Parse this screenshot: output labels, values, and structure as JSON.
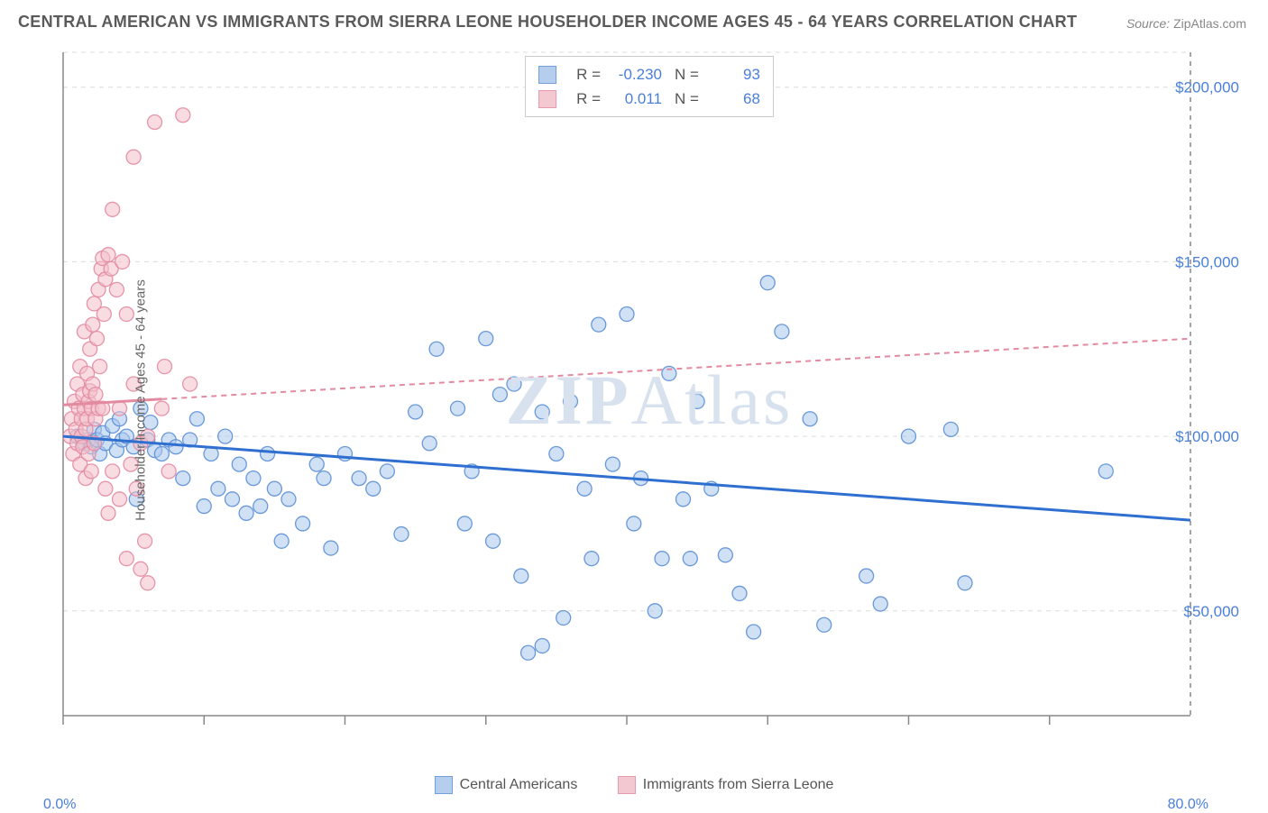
{
  "title": "CENTRAL AMERICAN VS IMMIGRANTS FROM SIERRA LEONE HOUSEHOLDER INCOME AGES 45 - 64 YEARS CORRELATION CHART",
  "source_label": "Source:",
  "source_value": "ZipAtlas.com",
  "ylabel": "Householder Income Ages 45 - 64 years",
  "watermark": "ZIPAtlas",
  "chart": {
    "type": "scatter",
    "xlim": [
      0,
      80
    ],
    "ylim": [
      20000,
      210000
    ],
    "xtick_positions": [
      0,
      10,
      20,
      30,
      40,
      50,
      60,
      70
    ],
    "ytick_positions": [
      50000,
      100000,
      150000,
      200000
    ],
    "ytick_labels": [
      "$50,000",
      "$100,000",
      "$150,000",
      "$200,000"
    ],
    "xmin_label": "0.0%",
    "xmax_label": "80.0%",
    "background_color": "#ffffff",
    "grid_color": "#dcdcdc",
    "axis_color": "#888888",
    "marker_radius": 8,
    "marker_opacity": 0.55,
    "marker_stroke_opacity": 0.9,
    "series": [
      {
        "name": "Central Americans",
        "color_fill": "#a9c6ec",
        "color_stroke": "#5b8fd6",
        "r": -0.23,
        "n": 93,
        "trend": {
          "y_at_xmin": 100000,
          "y_at_xmax": 76000,
          "stroke": "#2f6fd0",
          "width": 3,
          "dash": "none"
        },
        "points": [
          [
            1.0,
            100000
          ],
          [
            1.5,
            98000
          ],
          [
            1.8,
            99000
          ],
          [
            2.0,
            97000
          ],
          [
            2.2,
            102000
          ],
          [
            2.4,
            99000
          ],
          [
            2.6,
            95000
          ],
          [
            2.8,
            101000
          ],
          [
            3.0,
            98000
          ],
          [
            3.5,
            103000
          ],
          [
            3.8,
            96000
          ],
          [
            4.0,
            105000
          ],
          [
            4.2,
            99000
          ],
          [
            4.5,
            100000
          ],
          [
            5.0,
            97000
          ],
          [
            5.2,
            82000
          ],
          [
            5.5,
            108000
          ],
          [
            6.0,
            99000
          ],
          [
            6.2,
            104000
          ],
          [
            6.5,
            96000
          ],
          [
            7.0,
            95000
          ],
          [
            7.5,
            99000
          ],
          [
            8.0,
            97000
          ],
          [
            8.5,
            88000
          ],
          [
            9.0,
            99000
          ],
          [
            9.5,
            105000
          ],
          [
            10.0,
            80000
          ],
          [
            10.5,
            95000
          ],
          [
            11.0,
            85000
          ],
          [
            11.5,
            100000
          ],
          [
            12.0,
            82000
          ],
          [
            12.5,
            92000
          ],
          [
            13.0,
            78000
          ],
          [
            13.5,
            88000
          ],
          [
            14.0,
            80000
          ],
          [
            14.5,
            95000
          ],
          [
            15.0,
            85000
          ],
          [
            15.5,
            70000
          ],
          [
            16.0,
            82000
          ],
          [
            17.0,
            75000
          ],
          [
            18.0,
            92000
          ],
          [
            18.5,
            88000
          ],
          [
            19.0,
            68000
          ],
          [
            20.0,
            95000
          ],
          [
            21.0,
            88000
          ],
          [
            22.0,
            85000
          ],
          [
            23.0,
            90000
          ],
          [
            24.0,
            72000
          ],
          [
            25.0,
            107000
          ],
          [
            26.0,
            98000
          ],
          [
            26.5,
            125000
          ],
          [
            28.0,
            108000
          ],
          [
            28.5,
            75000
          ],
          [
            29.0,
            90000
          ],
          [
            30.0,
            128000
          ],
          [
            30.5,
            70000
          ],
          [
            31.0,
            112000
          ],
          [
            32.0,
            115000
          ],
          [
            32.5,
            60000
          ],
          [
            33.0,
            38000
          ],
          [
            34.0,
            40000
          ],
          [
            34.0,
            107000
          ],
          [
            35.0,
            95000
          ],
          [
            35.5,
            48000
          ],
          [
            36.0,
            110000
          ],
          [
            37.0,
            85000
          ],
          [
            37.5,
            65000
          ],
          [
            38.0,
            132000
          ],
          [
            39.0,
            92000
          ],
          [
            40.0,
            135000
          ],
          [
            40.5,
            75000
          ],
          [
            41.0,
            88000
          ],
          [
            42.0,
            50000
          ],
          [
            42.5,
            65000
          ],
          [
            43.0,
            118000
          ],
          [
            44.0,
            82000
          ],
          [
            44.5,
            65000
          ],
          [
            45.0,
            110000
          ],
          [
            46.0,
            85000
          ],
          [
            47.0,
            66000
          ],
          [
            48.0,
            55000
          ],
          [
            49.0,
            44000
          ],
          [
            50.0,
            144000
          ],
          [
            51.0,
            130000
          ],
          [
            53.0,
            105000
          ],
          [
            54.0,
            46000
          ],
          [
            57.0,
            60000
          ],
          [
            58.0,
            52000
          ],
          [
            60.0,
            100000
          ],
          [
            63.0,
            102000
          ],
          [
            64.0,
            58000
          ],
          [
            74.0,
            90000
          ]
        ]
      },
      {
        "name": "Immigrants from Sierra Leone",
        "color_fill": "#f2bfca",
        "color_stroke": "#e38aa0",
        "r": 0.011,
        "n": 68,
        "trend": {
          "y_at_xmin": 109000,
          "y_at_xmax": 128000,
          "stroke": "#e38aa0",
          "width": 2,
          "dash": "6 5",
          "solid_until": 7
        },
        "points": [
          [
            0.5,
            100000
          ],
          [
            0.6,
            105000
          ],
          [
            0.7,
            95000
          ],
          [
            0.8,
            110000
          ],
          [
            0.9,
            102000
          ],
          [
            1.0,
            98000
          ],
          [
            1.0,
            115000
          ],
          [
            1.1,
            108000
          ],
          [
            1.2,
            92000
          ],
          [
            1.2,
            120000
          ],
          [
            1.3,
            105000
          ],
          [
            1.3,
            100000
          ],
          [
            1.4,
            112000
          ],
          [
            1.4,
            97000
          ],
          [
            1.5,
            108000
          ],
          [
            1.5,
            130000
          ],
          [
            1.6,
            102000
          ],
          [
            1.6,
            88000
          ],
          [
            1.7,
            118000
          ],
          [
            1.7,
            105000
          ],
          [
            1.8,
            110000
          ],
          [
            1.8,
            95000
          ],
          [
            1.9,
            113000
          ],
          [
            1.9,
            125000
          ],
          [
            2.0,
            108000
          ],
          [
            2.0,
            90000
          ],
          [
            2.1,
            132000
          ],
          [
            2.1,
            115000
          ],
          [
            2.2,
            98000
          ],
          [
            2.2,
            138000
          ],
          [
            2.3,
            105000
          ],
          [
            2.3,
            112000
          ],
          [
            2.4,
            128000
          ],
          [
            2.5,
            108000
          ],
          [
            2.5,
            142000
          ],
          [
            2.6,
            120000
          ],
          [
            2.7,
            148000
          ],
          [
            2.8,
            108000
          ],
          [
            2.8,
            151000
          ],
          [
            2.9,
            135000
          ],
          [
            3.0,
            145000
          ],
          [
            3.0,
            85000
          ],
          [
            3.2,
            152000
          ],
          [
            3.2,
            78000
          ],
          [
            3.4,
            148000
          ],
          [
            3.5,
            165000
          ],
          [
            3.5,
            90000
          ],
          [
            3.8,
            142000
          ],
          [
            4.0,
            108000
          ],
          [
            4.0,
            82000
          ],
          [
            4.2,
            150000
          ],
          [
            4.5,
            65000
          ],
          [
            4.5,
            135000
          ],
          [
            4.8,
            92000
          ],
          [
            5.0,
            115000
          ],
          [
            5.0,
            180000
          ],
          [
            5.2,
            85000
          ],
          [
            5.5,
            62000
          ],
          [
            5.5,
            98000
          ],
          [
            5.8,
            70000
          ],
          [
            6.0,
            100000
          ],
          [
            6.0,
            58000
          ],
          [
            6.5,
            190000
          ],
          [
            7.0,
            108000
          ],
          [
            7.2,
            120000
          ],
          [
            7.5,
            90000
          ],
          [
            8.5,
            192000
          ],
          [
            9.0,
            115000
          ]
        ]
      }
    ]
  },
  "legend_labels": {
    "r": "R =",
    "n": "N ="
  }
}
